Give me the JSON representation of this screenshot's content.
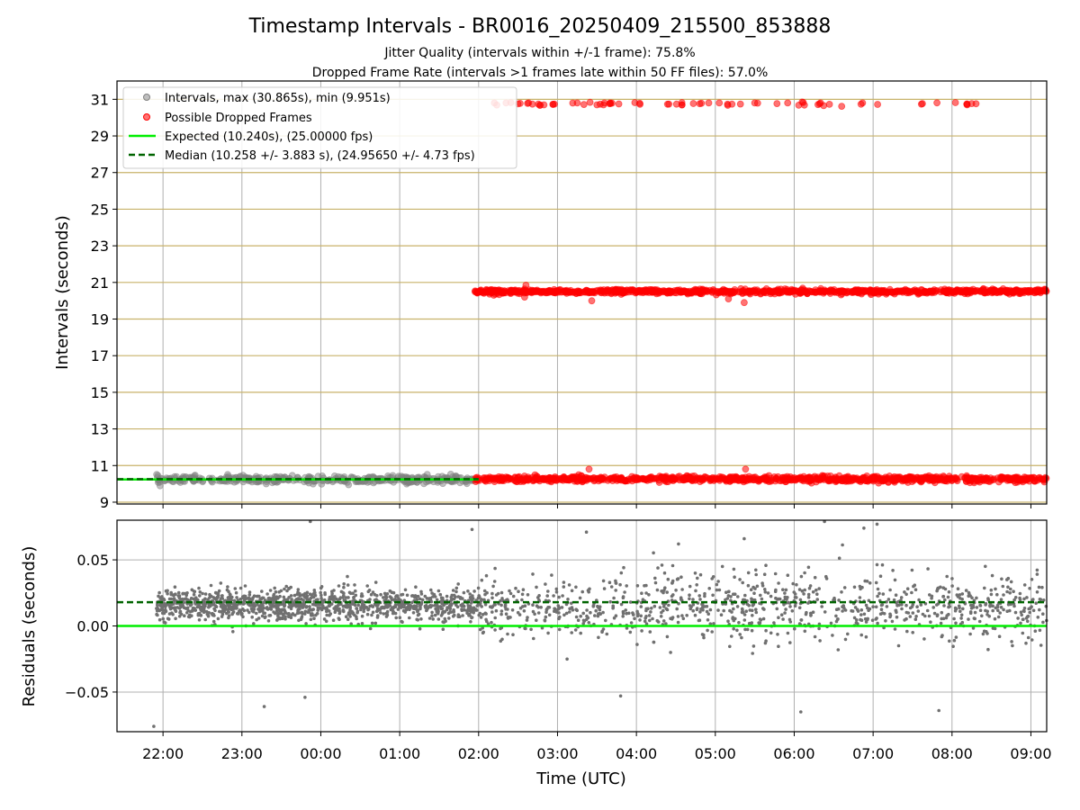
{
  "chart_data": [
    {
      "type": "scatter",
      "title": "Timestamp Intervals - BR0016_20250409_215500_853888",
      "subtitle_lines": [
        "Jitter Quality (intervals within +/-1 frame): 75.8%",
        "Dropped Frame Rate (intervals >1 frames late within 50 FF files): 57.0%"
      ],
      "xlabel": "",
      "ylabel": "Intervals (seconds)",
      "xlim": [
        "21:25",
        "09:12"
      ],
      "ylim": [
        8.9,
        32
      ],
      "yticks": [
        9,
        11,
        13,
        15,
        17,
        19,
        21,
        23,
        25,
        27,
        29,
        31
      ],
      "xticks": [
        "22:00",
        "23:00",
        "00:00",
        "01:00",
        "02:00",
        "03:00",
        "04:00",
        "05:00",
        "06:00",
        "07:00",
        "08:00",
        "09:00"
      ],
      "grid": true,
      "legend_position": "top-left",
      "series": [
        {
          "name": "Intervals, max (30.865s), min (9.951s)",
          "kind": "scatter",
          "color": "#808080",
          "opacity": 0.5,
          "clusters": [
            {
              "x_range": [
                "21:55",
                "01:57"
              ],
              "y_center": 10.24,
              "y_spread": 0.2
            }
          ]
        },
        {
          "name": "Possible Dropped Frames",
          "kind": "scatter",
          "color": "#ff0000",
          "opacity": 0.55,
          "clusters": [
            {
              "x_range": [
                "01:57",
                "09:12"
              ],
              "y_center": 10.26,
              "y_spread": 0.15
            },
            {
              "x_range": [
                "01:57",
                "09:12"
              ],
              "y_center": 20.5,
              "y_spread": 0.12
            },
            {
              "x_range": [
                "02:10",
                "08:35"
              ],
              "y_center": 30.75,
              "y_spread": 0.08
            }
          ],
          "outliers": [
            {
              "x": "03:24",
              "y": 10.8
            },
            {
              "x": "05:23",
              "y": 10.8
            },
            {
              "x": "02:36",
              "y": 20.85
            },
            {
              "x": "03:26",
              "y": 20.0
            },
            {
              "x": "05:22",
              "y": 19.9
            },
            {
              "x": "02:35",
              "y": 20.2
            },
            {
              "x": "05:10",
              "y": 20.1
            },
            {
              "x": "02:12",
              "y": 30.8
            },
            {
              "x": "02:30",
              "y": 30.75
            },
            {
              "x": "02:38",
              "y": 30.8
            },
            {
              "x": "03:15",
              "y": 30.8
            },
            {
              "x": "03:30",
              "y": 30.7
            },
            {
              "x": "03:35",
              "y": 30.7
            },
            {
              "x": "03:40",
              "y": 30.8
            },
            {
              "x": "04:55",
              "y": 30.8
            },
            {
              "x": "05:03",
              "y": 30.8
            },
            {
              "x": "05:30",
              "y": 30.8
            },
            {
              "x": "05:55",
              "y": 30.8
            },
            {
              "x": "06:20",
              "y": 30.8
            },
            {
              "x": "06:52",
              "y": 30.8
            }
          ]
        },
        {
          "name": "Expected (10.240s), (25.00000 fps)",
          "kind": "line",
          "style": "solid",
          "color": "#00ee00",
          "y": 10.24
        },
        {
          "name": "Median (10.258 +/- 3.883 s), (24.95650 +/- 4.73 fps)",
          "kind": "line",
          "style": "dashed",
          "color": "#006400",
          "y": 10.258
        }
      ],
      "band_lines": {
        "color": "#c8b26a",
        "y_values": [
          9.0,
          10.24,
          11.0,
          13.0,
          15.0,
          17.0,
          19.0,
          21.0,
          23.0,
          25.0,
          27.0,
          29.0,
          31.0
        ]
      }
    },
    {
      "type": "scatter",
      "title": "",
      "xlabel": "Time (UTC)",
      "ylabel": "Residuals (seconds)",
      "xlim": [
        "21:25",
        "09:12"
      ],
      "ylim": [
        -0.08,
        0.08
      ],
      "yticks": [
        -0.05,
        0.0,
        0.05
      ],
      "ytick_labels": [
        "−0.05",
        "0.00",
        "0.05"
      ],
      "xticks": [
        "22:00",
        "23:00",
        "00:00",
        "01:00",
        "02:00",
        "03:00",
        "04:00",
        "05:00",
        "06:00",
        "07:00",
        "08:00",
        "09:00"
      ],
      "grid": true,
      "series": [
        {
          "name": "",
          "kind": "scatter",
          "color": "#707070",
          "clusters": [
            {
              "x_range": [
                "21:55",
                "02:00"
              ],
              "y_center": 0.016,
              "y_spread": 0.012
            },
            {
              "x_range": [
                "02:00",
                "09:12"
              ],
              "y_center": 0.014,
              "y_spread": 0.025
            }
          ],
          "outliers": [
            {
              "x": "21:53",
              "y": -0.076
            },
            {
              "x": "23:17",
              "y": -0.061
            },
            {
              "x": "23:48",
              "y": -0.054
            },
            {
              "x": "23:52",
              "y": 0.079
            },
            {
              "x": "01:55",
              "y": 0.073
            },
            {
              "x": "03:22",
              "y": 0.071
            },
            {
              "x": "04:32",
              "y": 0.062
            },
            {
              "x": "05:22",
              "y": 0.066
            },
            {
              "x": "06:23",
              "y": 0.079
            },
            {
              "x": "06:53",
              "y": 0.074
            },
            {
              "x": "07:03",
              "y": 0.077
            },
            {
              "x": "07:50",
              "y": -0.064
            },
            {
              "x": "03:48",
              "y": -0.053
            },
            {
              "x": "06:05",
              "y": -0.065
            }
          ]
        },
        {
          "name": "",
          "kind": "line",
          "style": "solid",
          "color": "#00ee00",
          "y": 0.0
        },
        {
          "name": "",
          "kind": "line",
          "style": "dashed",
          "color": "#006400",
          "y": 0.018
        }
      ]
    }
  ]
}
